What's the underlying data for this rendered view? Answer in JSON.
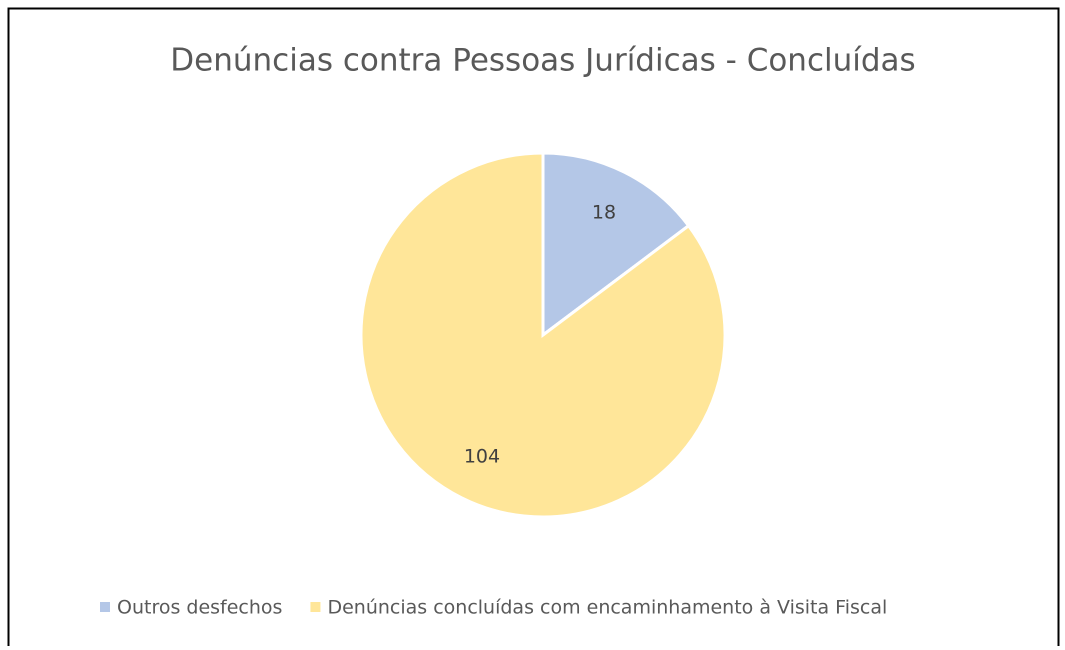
{
  "chart_data": {
    "type": "pie",
    "title": "Denúncias contra Pessoas Jurídicas - Concluídas",
    "categories": [
      "Outros desfechos",
      "Denúncias concluídas com encaminhamento à Visita Fiscal"
    ],
    "values": [
      18,
      104
    ],
    "colors": [
      "#b4c7e7",
      "#ffe699"
    ],
    "legend": "bottom"
  }
}
